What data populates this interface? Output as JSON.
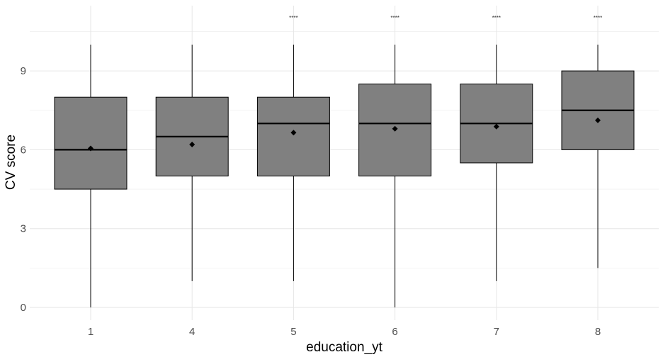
{
  "chart_data": {
    "type": "boxplot",
    "title": "",
    "xlabel": "education_yt",
    "ylabel": "CV score",
    "ylim": [
      -0.4,
      10.5
    ],
    "yticks": [
      0,
      3,
      6,
      9
    ],
    "ytick_labels": [
      "0",
      "3",
      "6",
      "9"
    ],
    "grid": "horizontal major and minor, light gray",
    "legend": "none",
    "colors": {
      "box_fill": "#808080",
      "box_edge": "#000000",
      "grid_major": "#e6e6e6",
      "grid_minor": "#f0f0f0",
      "text": "#4d4d4d"
    },
    "categories": [
      "1",
      "4",
      "5",
      "6",
      "7",
      "8"
    ],
    "boxes": [
      {
        "category": "1",
        "whisker_low": 0,
        "q1": 4.5,
        "median": 6,
        "q3": 8,
        "whisker_high": 10,
        "mean": 6.05,
        "significance": ""
      },
      {
        "category": "4",
        "whisker_low": 1,
        "q1": 5,
        "median": 6.5,
        "q3": 8,
        "whisker_high": 10,
        "mean": 6.2,
        "significance": ""
      },
      {
        "category": "5",
        "whisker_low": 1,
        "q1": 5,
        "median": 7,
        "q3": 8,
        "whisker_high": 10,
        "mean": 6.65,
        "significance": "****"
      },
      {
        "category": "6",
        "whisker_low": 0,
        "q1": 5,
        "median": 7,
        "q3": 8.5,
        "whisker_high": 10,
        "mean": 6.8,
        "significance": "****"
      },
      {
        "category": "7",
        "whisker_low": 1,
        "q1": 5.5,
        "median": 7,
        "q3": 8.5,
        "whisker_high": 10,
        "mean": 6.88,
        "significance": "****"
      },
      {
        "category": "8",
        "whisker_low": 1.5,
        "q1": 6,
        "median": 7.5,
        "q3": 9,
        "whisker_high": 10,
        "mean": 7.12,
        "significance": "****"
      }
    ]
  }
}
